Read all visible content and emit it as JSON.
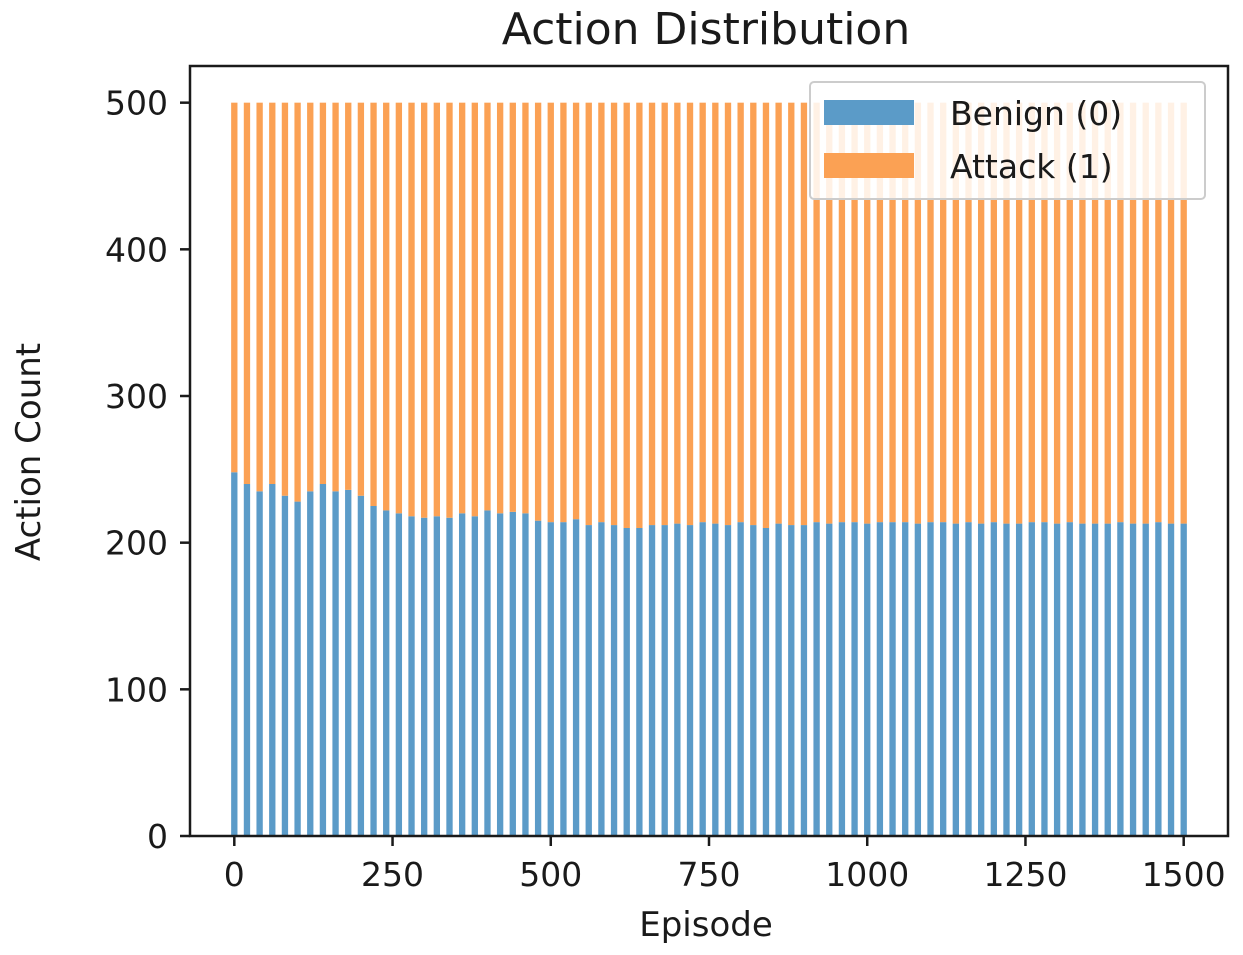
{
  "colors": {
    "benign": "#5b9bc8",
    "attack": "#fba154",
    "axis": "#1a1a1a",
    "legend_border": "#cccccc"
  },
  "chart_data": {
    "type": "bar",
    "stacked": true,
    "title": "Action Distribution",
    "xlabel": "Episode",
    "ylabel": "Action Count",
    "xlim": [
      -70,
      1570
    ],
    "ylim": [
      0,
      525
    ],
    "x_ticks": [
      0,
      250,
      500,
      750,
      1000,
      1250,
      1500
    ],
    "y_ticks": [
      0,
      100,
      200,
      300,
      400,
      500
    ],
    "grid": false,
    "legend_position": "top-right",
    "bar_width": 10,
    "x": [
      0,
      20,
      40,
      60,
      80,
      100,
      120,
      140,
      160,
      180,
      200,
      220,
      240,
      260,
      280,
      300,
      320,
      340,
      360,
      380,
      400,
      420,
      440,
      460,
      480,
      500,
      520,
      540,
      560,
      580,
      600,
      620,
      640,
      660,
      680,
      700,
      720,
      740,
      760,
      780,
      800,
      820,
      840,
      860,
      880,
      900,
      920,
      940,
      960,
      980,
      1000,
      1020,
      1040,
      1060,
      1080,
      1100,
      1120,
      1140,
      1160,
      1180,
      1200,
      1220,
      1240,
      1260,
      1280,
      1300,
      1320,
      1340,
      1360,
      1380,
      1400,
      1420,
      1440,
      1460,
      1480,
      1500
    ],
    "series": [
      {
        "name": "Benign (0)",
        "values": [
          248,
          240,
          235,
          240,
          232,
          228,
          235,
          240,
          235,
          236,
          232,
          225,
          222,
          220,
          218,
          217,
          218,
          217,
          220,
          218,
          222,
          220,
          221,
          220,
          215,
          214,
          214,
          216,
          212,
          214,
          212,
          210,
          210,
          212,
          212,
          213,
          212,
          214,
          213,
          212,
          214,
          212,
          210,
          213,
          212,
          212,
          214,
          213,
          214,
          214,
          213,
          214,
          214,
          214,
          213,
          214,
          214,
          213,
          214,
          213,
          214,
          213,
          213,
          214,
          214,
          213,
          214,
          213,
          213,
          213,
          214,
          213,
          213,
          214,
          213,
          213
        ]
      },
      {
        "name": "Attack (1)",
        "values": [
          252,
          260,
          265,
          260,
          268,
          272,
          265,
          260,
          265,
          264,
          268,
          275,
          278,
          280,
          282,
          283,
          282,
          283,
          280,
          282,
          278,
          280,
          279,
          280,
          285,
          286,
          286,
          284,
          288,
          286,
          288,
          290,
          290,
          288,
          288,
          287,
          288,
          286,
          287,
          288,
          286,
          288,
          290,
          287,
          288,
          288,
          286,
          287,
          286,
          286,
          287,
          286,
          286,
          286,
          287,
          286,
          286,
          287,
          286,
          287,
          286,
          287,
          287,
          286,
          286,
          287,
          286,
          287,
          287,
          287,
          286,
          287,
          287,
          286,
          287,
          287
        ]
      }
    ]
  }
}
